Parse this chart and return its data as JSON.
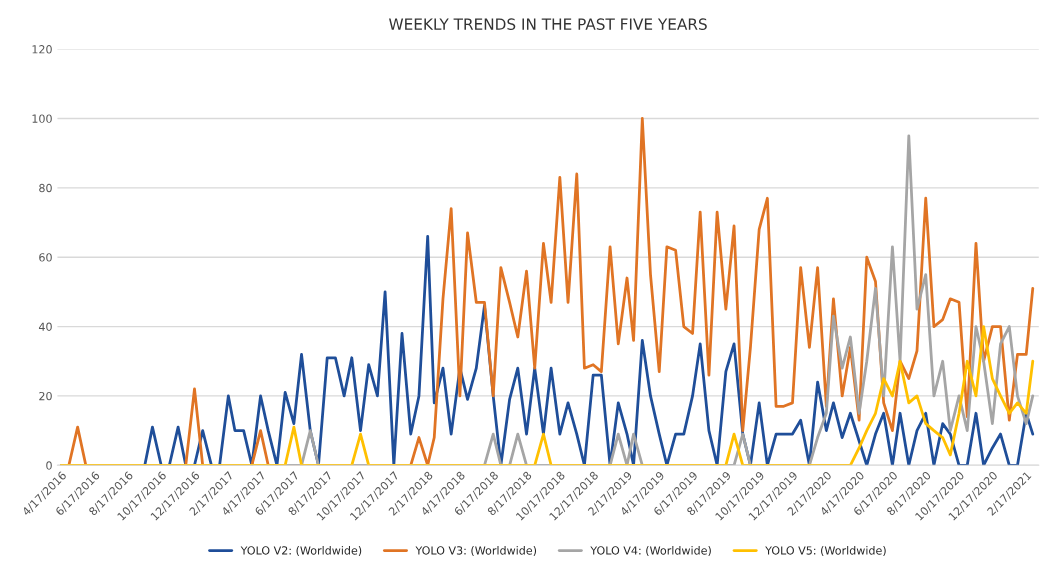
{
  "chart_data": {
    "type": "line",
    "title": "WEEKLY TRENDS IN THE PAST FIVE YEARS",
    "x": [
      "2016-04-17",
      "2016-05-01",
      "2016-05-17",
      "2016-06-01",
      "2016-06-17",
      "2016-07-01",
      "2016-07-17",
      "2016-08-01",
      "2016-08-17",
      "2016-09-01",
      "2016-09-17",
      "2016-10-01",
      "2016-10-17",
      "2016-11-01",
      "2016-11-17",
      "2016-12-01",
      "2016-12-17",
      "2017-01-01",
      "2017-01-17",
      "2017-02-01",
      "2017-02-17",
      "2017-03-01",
      "2017-03-17",
      "2017-04-01",
      "2017-04-17",
      "2017-05-01",
      "2017-05-17",
      "2017-06-01",
      "2017-06-17",
      "2017-07-01",
      "2017-07-17",
      "2017-08-01",
      "2017-08-17",
      "2017-09-01",
      "2017-09-17",
      "2017-10-01",
      "2017-10-17",
      "2017-11-01",
      "2017-11-17",
      "2017-12-01",
      "2017-12-17",
      "2018-01-01",
      "2018-01-17",
      "2018-02-01",
      "2018-02-17",
      "2018-03-01",
      "2018-03-17",
      "2018-04-01",
      "2018-04-17",
      "2018-05-01",
      "2018-05-17",
      "2018-06-01",
      "2018-06-17",
      "2018-07-01",
      "2018-07-17",
      "2018-08-01",
      "2018-08-17",
      "2018-09-01",
      "2018-09-17",
      "2018-10-01",
      "2018-10-17",
      "2018-11-01",
      "2018-11-17",
      "2018-12-01",
      "2018-12-17",
      "2019-01-01",
      "2019-01-17",
      "2019-02-01",
      "2019-02-17",
      "2019-03-01",
      "2019-03-17",
      "2019-04-01",
      "2019-04-17",
      "2019-05-01",
      "2019-05-17",
      "2019-06-01",
      "2019-06-17",
      "2019-07-01",
      "2019-07-17",
      "2019-08-01",
      "2019-08-17",
      "2019-09-01",
      "2019-09-17",
      "2019-10-01",
      "2019-10-17",
      "2019-11-01",
      "2019-11-17",
      "2019-12-01",
      "2019-12-17",
      "2020-01-01",
      "2020-01-17",
      "2020-02-01",
      "2020-02-17",
      "2020-03-01",
      "2020-03-17",
      "2020-04-01",
      "2020-04-17",
      "2020-05-01",
      "2020-05-17",
      "2020-06-01",
      "2020-06-17",
      "2020-07-01",
      "2020-07-17",
      "2020-08-01",
      "2020-08-17",
      "2020-09-01",
      "2020-09-17",
      "2020-10-01",
      "2020-10-17",
      "2020-11-01",
      "2020-11-17",
      "2020-12-01",
      "2020-12-17",
      "2021-01-01",
      "2021-01-17",
      "2021-02-01",
      "2021-02-17",
      "2021-03-01"
    ],
    "series": [
      {
        "name": "YOLO V2: (Worldwide)",
        "color": "#1f4e99",
        "values": [
          null,
          null,
          null,
          null,
          null,
          null,
          null,
          null,
          null,
          null,
          0,
          11,
          0,
          0,
          11,
          0,
          0,
          10,
          0,
          0,
          20,
          10,
          10,
          0,
          20,
          10,
          0,
          21,
          12,
          32,
          10,
          0,
          31,
          31,
          20,
          31,
          10,
          29,
          20,
          50,
          0,
          38,
          9,
          20,
          66,
          18,
          28,
          9,
          28,
          19,
          28,
          46,
          20,
          0,
          19,
          28,
          9,
          28,
          9,
          28,
          9,
          18,
          9,
          0,
          26,
          26,
          0,
          18,
          9,
          0,
          36,
          20,
          9,
          0,
          9,
          9,
          20,
          35,
          10,
          0,
          27,
          35,
          9,
          0,
          18,
          0,
          9,
          9,
          9,
          13,
          0,
          24,
          10,
          18,
          8,
          15,
          7,
          0,
          9,
          15,
          0,
          15,
          0,
          10,
          15,
          0,
          12,
          9,
          0,
          0,
          15,
          0,
          5,
          9,
          0,
          0,
          15,
          9
        ]
      },
      {
        "name": "YOLO V3: (Worldwide)",
        "color": "#e07424",
        "values": [
          0,
          0,
          11,
          0,
          0,
          0,
          0,
          0,
          0,
          0,
          0,
          0,
          0,
          0,
          0,
          0,
          22,
          0,
          0,
          0,
          0,
          0,
          0,
          0,
          10,
          0,
          0,
          0,
          0,
          0,
          0,
          0,
          0,
          0,
          0,
          0,
          0,
          0,
          0,
          0,
          0,
          0,
          0,
          8,
          0,
          8,
          48,
          74,
          20,
          67,
          47,
          47,
          20,
          57,
          47,
          37,
          56,
          28,
          64,
          47,
          83,
          47,
          84,
          28,
          29,
          27,
          63,
          35,
          54,
          36,
          100,
          55,
          27,
          63,
          62,
          40,
          38,
          73,
          26,
          73,
          45,
          69,
          10,
          34,
          68,
          77,
          17,
          17,
          18,
          57,
          34,
          57,
          17,
          48,
          20,
          34,
          13,
          60,
          53,
          18,
          10,
          30,
          25,
          33,
          77,
          40,
          42,
          48,
          47,
          14,
          64,
          30,
          40,
          40,
          13,
          32,
          32,
          51
        ]
      },
      {
        "name": "YOLO V4: (Worldwide)",
        "color": "#a5a5a5",
        "values": [
          0,
          0,
          0,
          0,
          0,
          0,
          0,
          0,
          0,
          0,
          0,
          0,
          0,
          0,
          0,
          0,
          0,
          0,
          0,
          0,
          0,
          0,
          0,
          0,
          0,
          0,
          0,
          0,
          0,
          0,
          10,
          0,
          0,
          0,
          0,
          0,
          0,
          0,
          0,
          0,
          0,
          0,
          0,
          0,
          0,
          0,
          0,
          0,
          0,
          0,
          0,
          0,
          9,
          0,
          0,
          9,
          0,
          0,
          0,
          0,
          0,
          0,
          0,
          0,
          0,
          0,
          0,
          9,
          0,
          9,
          0,
          0,
          0,
          0,
          0,
          0,
          0,
          0,
          0,
          0,
          0,
          0,
          9,
          0,
          0,
          0,
          0,
          0,
          0,
          0,
          0,
          8,
          15,
          43,
          28,
          37,
          15,
          30,
          51,
          20,
          63,
          30,
          95,
          45,
          55,
          20,
          30,
          10,
          20,
          10,
          40,
          30,
          12,
          35,
          40,
          20,
          12,
          20
        ]
      },
      {
        "name": "YOLO V5: (Worldwide)",
        "color": "#ffc000",
        "values": [
          0,
          0,
          0,
          0,
          0,
          0,
          0,
          0,
          0,
          0,
          0,
          0,
          0,
          0,
          0,
          0,
          0,
          0,
          0,
          0,
          0,
          0,
          0,
          0,
          0,
          0,
          0,
          0,
          11,
          0,
          0,
          0,
          0,
          0,
          0,
          0,
          9,
          0,
          0,
          0,
          0,
          0,
          0,
          0,
          0,
          0,
          0,
          0,
          0,
          0,
          0,
          0,
          0,
          0,
          0,
          0,
          0,
          0,
          9,
          0,
          0,
          0,
          0,
          0,
          0,
          0,
          0,
          0,
          0,
          0,
          0,
          0,
          0,
          0,
          0,
          0,
          0,
          0,
          0,
          0,
          0,
          9,
          0,
          0,
          0,
          0,
          0,
          0,
          0,
          0,
          0,
          0,
          0,
          0,
          0,
          0,
          5,
          10,
          15,
          25,
          20,
          30,
          18,
          20,
          12,
          10,
          8,
          3,
          15,
          30,
          20,
          40,
          25,
          20,
          15,
          18,
          15,
          30
        ]
      }
    ],
    "xlim": [
      "2016-04-10",
      "2021-03-12"
    ],
    "xticks": [
      {
        "value": "2016-04-17",
        "label": "4/17/2016"
      },
      {
        "value": "2016-06-17",
        "label": "6/17/2016"
      },
      {
        "value": "2016-08-17",
        "label": "8/17/2016"
      },
      {
        "value": "2016-10-17",
        "label": "10/17/2016"
      },
      {
        "value": "2016-12-17",
        "label": "12/17/2016"
      },
      {
        "value": "2017-02-17",
        "label": "2/17/2017"
      },
      {
        "value": "2017-04-17",
        "label": "4/17/2017"
      },
      {
        "value": "2017-06-17",
        "label": "6/17/2017"
      },
      {
        "value": "2017-08-17",
        "label": "8/17/2017"
      },
      {
        "value": "2017-10-17",
        "label": "10/17/2017"
      },
      {
        "value": "2017-12-17",
        "label": "12/17/2017"
      },
      {
        "value": "2018-02-17",
        "label": "2/17/2018"
      },
      {
        "value": "2018-04-17",
        "label": "4/17/2018"
      },
      {
        "value": "2018-06-17",
        "label": "6/17/2018"
      },
      {
        "value": "2018-08-17",
        "label": "8/17/2018"
      },
      {
        "value": "2018-10-17",
        "label": "10/17/2018"
      },
      {
        "value": "2018-12-17",
        "label": "12/17/2018"
      },
      {
        "value": "2019-02-17",
        "label": "2/17/2019"
      },
      {
        "value": "2019-04-17",
        "label": "4/17/2019"
      },
      {
        "value": "2019-06-17",
        "label": "6/17/2019"
      },
      {
        "value": "2019-08-17",
        "label": "8/17/2019"
      },
      {
        "value": "2019-10-17",
        "label": "10/17/2019"
      },
      {
        "value": "2019-12-17",
        "label": "12/17/2019"
      },
      {
        "value": "2020-02-17",
        "label": "2/17/2020"
      },
      {
        "value": "2020-04-17",
        "label": "4/17/2020"
      },
      {
        "value": "2020-06-17",
        "label": "6/17/2020"
      },
      {
        "value": "2020-08-17",
        "label": "8/17/2020"
      },
      {
        "value": "2020-10-17",
        "label": "10/17/2020"
      },
      {
        "value": "2020-12-17",
        "label": "12/17/2020"
      },
      {
        "value": "2021-02-17",
        "label": "2/17/2021"
      }
    ],
    "ylim": [
      0,
      120
    ],
    "yticks": [
      0,
      20,
      40,
      60,
      80,
      100,
      120
    ],
    "grid": "y",
    "legend": "bottom",
    "marker": "none",
    "line_style": "solid"
  }
}
